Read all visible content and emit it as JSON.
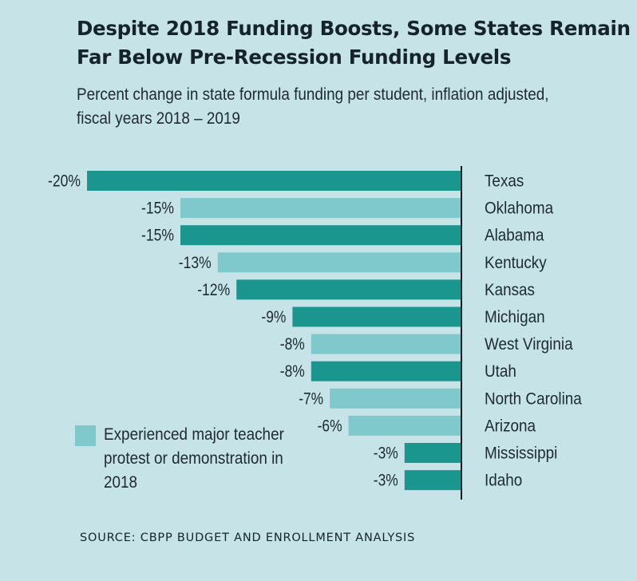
{
  "chart_data": {
    "type": "bar",
    "orientation": "horizontal",
    "title": "Despite 2018 Funding Boosts, Some States Remain Far Below Pre-Recession Funding Levels",
    "subtitle": "Percent change in state formula funding per student, inflation adjusted, fiscal years 2018 – 2019",
    "xlabel": "",
    "ylabel": "",
    "xlim": [
      -20,
      0
    ],
    "grid": false,
    "categories": [
      "Texas",
      "Oklahoma",
      "Alabama",
      "Kentucky",
      "Kansas",
      "Michigan",
      "West Virginia",
      "Utah",
      "North Carolina",
      "Arizona",
      "Mississippi",
      "Idaho"
    ],
    "values": [
      -20,
      -15,
      -15,
      -13,
      -12,
      -9,
      -8,
      -8,
      -7,
      -6,
      -3,
      -3
    ],
    "value_labels": [
      "-20%",
      "-15%",
      "-15%",
      "-13%",
      "-12%",
      "-9%",
      "-8%",
      "-8%",
      "-7%",
      "-6%",
      "-3%",
      "-3%"
    ],
    "teacher_protest_2018": [
      false,
      true,
      false,
      true,
      false,
      false,
      true,
      false,
      true,
      true,
      false,
      false
    ],
    "legend": {
      "position": "bottom-left",
      "entries": [
        {
          "label": "Experienced major teacher protest or demonstration in 2018",
          "color": "#7fc8cb"
        }
      ]
    },
    "colors": {
      "default": "#1a968f",
      "protest": "#7fc8cb",
      "axis": "#0f1c22",
      "background": "#c6e4e8"
    },
    "source": "SOURCE: CBPP BUDGET AND ENROLLMENT ANALYSIS"
  }
}
